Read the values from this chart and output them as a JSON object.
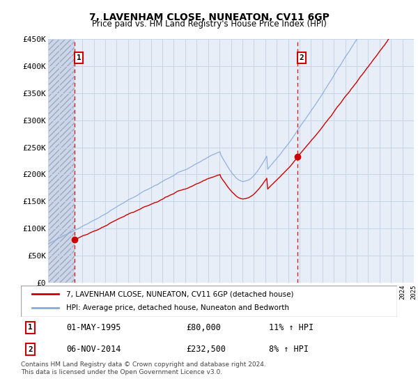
{
  "title": "7, LAVENHAM CLOSE, NUNEATON, CV11 6GP",
  "subtitle": "Price paid vs. HM Land Registry's House Price Index (HPI)",
  "ylim": [
    0,
    450000
  ],
  "yticks": [
    0,
    50000,
    100000,
    150000,
    200000,
    250000,
    300000,
    350000,
    400000,
    450000
  ],
  "ytick_labels": [
    "£0",
    "£50K",
    "£100K",
    "£150K",
    "£200K",
    "£250K",
    "£300K",
    "£350K",
    "£400K",
    "£450K"
  ],
  "legend_entry1": "7, LAVENHAM CLOSE, NUNEATON, CV11 6GP (detached house)",
  "legend_entry2": "HPI: Average price, detached house, Nuneaton and Bedworth",
  "transaction1_date": "01-MAY-1995",
  "transaction1_price": 80000,
  "transaction1_hpi": "11% ↑ HPI",
  "transaction2_date": "06-NOV-2014",
  "transaction2_price": 232500,
  "transaction2_hpi": "8% ↑ HPI",
  "footer": "Contains HM Land Registry data © Crown copyright and database right 2024.\nThis data is licensed under the Open Government Licence v3.0.",
  "line_color_property": "#cc0000",
  "line_color_hpi": "#88aadd",
  "plot_bg": "#e8eef8",
  "hatch_bg": "#d8e0ec",
  "grid_color": "#c8d4e8",
  "t1_x": 1995.33,
  "t2_x": 2014.83,
  "t1_price": 80000,
  "t2_price": 232500,
  "xmin": 1993,
  "xmax": 2025
}
